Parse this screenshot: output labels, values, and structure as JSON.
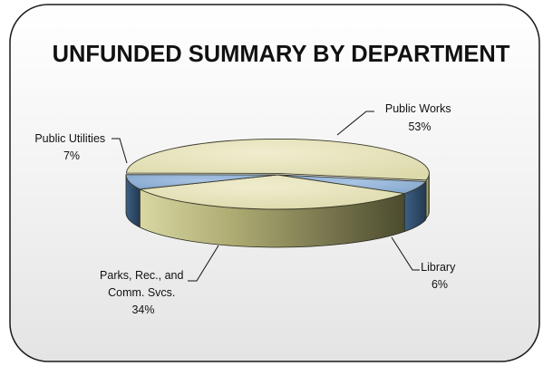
{
  "chart_data": {
    "type": "pie",
    "title": "UNFUNDED SUMMARY BY DEPARTMENT",
    "legend": "none",
    "slices": [
      {
        "label": "Public Works",
        "value": 53,
        "value_label": "53%",
        "label_lines": [
          "Public Works",
          "53%"
        ],
        "color": "#e5e2b8"
      },
      {
        "label": "Library",
        "value": 6,
        "value_label": "6%",
        "label_lines": [
          "Library",
          "6%"
        ],
        "color": "#8fb1d6"
      },
      {
        "label": "Parks, Rec., and Comm. Svcs.",
        "value": 34,
        "value_label": "34%",
        "label_lines": [
          "Parks, Rec., and",
          "Comm. Svcs.",
          "34%"
        ],
        "color": "#e0dfb0"
      },
      {
        "label": "Public Utilities",
        "value": 7,
        "value_label": "7%",
        "label_lines": [
          "Public Utilities",
          "7%"
        ],
        "color": "#8fb1d6"
      }
    ]
  }
}
